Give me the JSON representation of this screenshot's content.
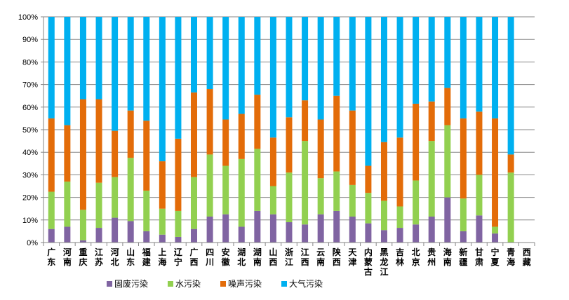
{
  "chart_data": {
    "type": "bar",
    "stacked": true,
    "percent_stacked": true,
    "title": "",
    "xlabel": "",
    "ylabel": "",
    "ylim": [
      0,
      100
    ],
    "yticks": [
      "0%",
      "10%",
      "20%",
      "30%",
      "40%",
      "50%",
      "60%",
      "70%",
      "80%",
      "90%",
      "100%"
    ],
    "grid": true,
    "legend_position": "bottom",
    "categories": [
      "广东",
      "河南",
      "重庆",
      "江苏",
      "河北",
      "山东",
      "福建",
      "上海",
      "辽宁",
      "广西",
      "四川",
      "安徽",
      "湖北",
      "湖南",
      "山西",
      "浙江",
      "江西",
      "云南",
      "陕西",
      "天津",
      "内蒙古",
      "黑龙江",
      "吉林",
      "北京",
      "贵州",
      "海南",
      "新疆",
      "甘肃",
      "宁夏",
      "青海",
      "西藏"
    ],
    "series": [
      {
        "name": "固废污染",
        "color": "#8064A2",
        "values": [
          6,
          7,
          1,
          6.5,
          11,
          9.5,
          5,
          3.5,
          2.5,
          6,
          11.5,
          12.5,
          7,
          14,
          12.5,
          9,
          8,
          12.5,
          14,
          11.5,
          8.5,
          5.5,
          6.5,
          8,
          11.5,
          20,
          5,
          12,
          4,
          0,
          0
        ]
      },
      {
        "name": "水污染",
        "color": "#92D050",
        "values": [
          16.5,
          20,
          13.5,
          20,
          18,
          28,
          18,
          11.5,
          11.5,
          23,
          27.5,
          21.5,
          30,
          27.5,
          12.5,
          22,
          37,
          16,
          17.5,
          14,
          13.5,
          13,
          9.5,
          19.5,
          33.5,
          32,
          14.5,
          18,
          3,
          31,
          0
        ]
      },
      {
        "name": "噪声污染",
        "color": "#E36C09",
        "values": [
          32.5,
          25,
          49,
          37,
          20.5,
          21,
          31,
          21,
          32,
          37.5,
          29,
          20.5,
          20,
          24,
          21.5,
          24.5,
          18,
          26,
          33.5,
          33,
          12,
          26,
          30.5,
          34,
          17.5,
          16.5,
          35.5,
          28,
          48,
          8,
          0
        ]
      },
      {
        "name": "大气污染",
        "color": "#00B0F0",
        "values": [
          45,
          48,
          36.5,
          36.5,
          50.5,
          41.5,
          46,
          64,
          54,
          33.5,
          32,
          45.5,
          43,
          34.5,
          53.5,
          44.5,
          37,
          45.5,
          35,
          41.5,
          66,
          55.5,
          53.5,
          38.5,
          37.5,
          31.5,
          45,
          42,
          45,
          61,
          0
        ]
      }
    ]
  }
}
